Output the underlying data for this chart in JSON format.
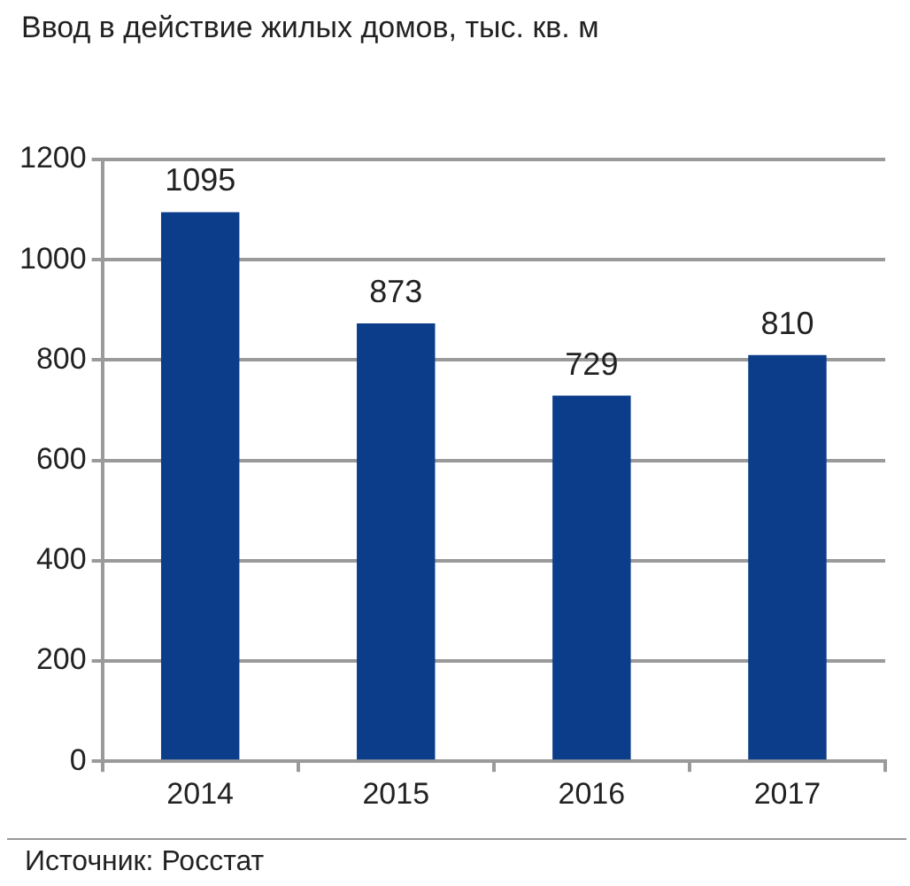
{
  "chart_data": {
    "type": "bar",
    "title": "Ввод в действие жилых домов, тыс. кв. м",
    "categories": [
      "2014",
      "2015",
      "2016",
      "2017"
    ],
    "values": [
      1095,
      873,
      729,
      810
    ],
    "color": "#0b3d8a",
    "ylim": [
      0,
      1200
    ],
    "yticks": [
      0,
      200,
      400,
      600,
      800,
      1000,
      1200
    ],
    "grid": "y",
    "data_labels": true,
    "legend": false,
    "annotations": [
      "Источник: Росстат"
    ]
  }
}
